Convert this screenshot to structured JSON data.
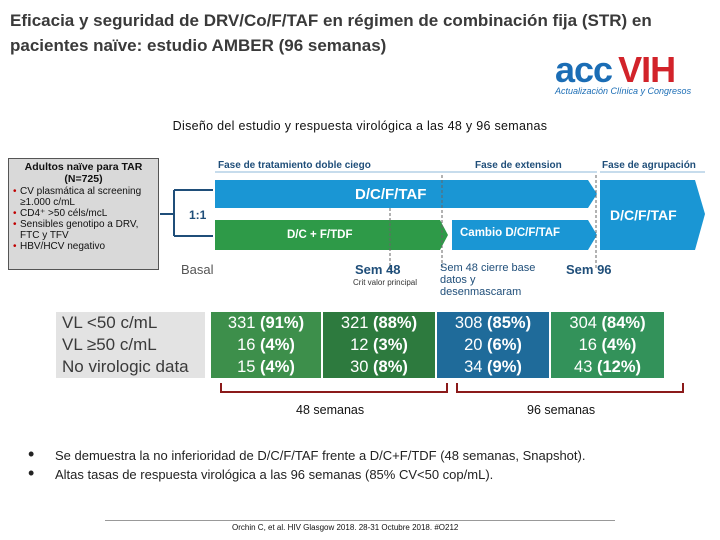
{
  "title": "Eficacia y seguridad de DRV/Co/F/TAF en régimen de combinación fija (STR) en pacientes naïve: estudio AMBER (96 semanas)",
  "logo": {
    "main_a": "acc",
    "main_b": "VIH",
    "sub": "Actualización Clínica y Congresos"
  },
  "subtitle": "Diseño del estudio y respuesta virológica a las 48 y 96 semanas",
  "patients": {
    "title": "Adultos naïve para TAR (N=725)",
    "criteria": [
      "CV plasmática al screening ≥1.000 c/mL",
      "CD4⁺ >50 céls/mcL",
      "Sensibles genotipo a DRV, FTC y TFV",
      "HBV/HCV negativo"
    ]
  },
  "phases": {
    "double_blind": "Fase de tratamiento doble ciego",
    "extension": "Fase de extension",
    "rollover": "Fase de agrupación"
  },
  "randomization": "1:1",
  "arms": {
    "top": "D/C/F/TAF",
    "bottom": "D/C + F/TDF",
    "switch": "Cambio D/C/F/TAF",
    "rollover": "D/C/F/TAF"
  },
  "colors": {
    "arm_top": "#1a96d4",
    "arm_bottom": "#2e9a48",
    "rollover": "#1a96d4"
  },
  "timepoints": {
    "basal": "Basal",
    "week48": "Sem 48",
    "week48_note": "Crit valor principal",
    "week48_lock": "Sem 48 cierre base datos y desenmascaram",
    "week96": "Sem 96"
  },
  "results": {
    "rows": [
      {
        "label": "VL <50 c/mL",
        "cells": [
          [
            "331",
            "(91%)"
          ],
          [
            "321",
            "(88%)"
          ],
          [
            "308",
            "(85%)"
          ],
          [
            "304",
            "(84%)"
          ]
        ]
      },
      {
        "label": "VL ≥50 c/mL",
        "cells": [
          [
            "16",
            "(4%)"
          ],
          [
            "12",
            "(3%)"
          ],
          [
            "20",
            "(6%)"
          ],
          [
            "16",
            "(4%)"
          ]
        ]
      },
      {
        "label": "No virologic data",
        "cells": [
          [
            "15",
            "(4%)"
          ],
          [
            "30",
            "(8%)"
          ],
          [
            "34",
            "(9%)"
          ],
          [
            "43",
            "(12%)"
          ]
        ]
      }
    ]
  },
  "brackets": {
    "left": "48 semanas",
    "right": "96 semanas"
  },
  "bullets": [
    "Se demuestra la no inferioridad de D/C/F/TAF frente a D/C+F/TDF (48 semanas, Snapshot).",
    "Altas tasas de respuesta virológica a las 96 semanas (85% CV<50 cop/mL)."
  ],
  "footer": "Orchin C, et al. HIV Glasgow 2018. 28-31 Octubre 2018. #O212"
}
